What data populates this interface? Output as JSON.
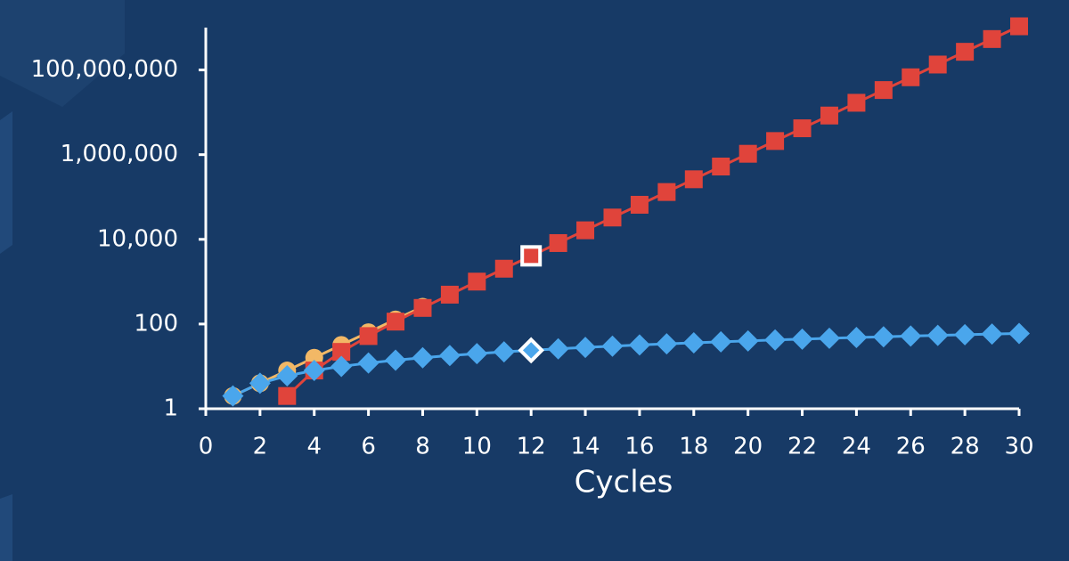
{
  "chart_data": {
    "type": "line",
    "x_label": "Cycles",
    "x": [
      1,
      2,
      3,
      4,
      5,
      6,
      7,
      8,
      9,
      10,
      11,
      12,
      13,
      14,
      15,
      16,
      17,
      18,
      19,
      20,
      21,
      22,
      23,
      24,
      25,
      26,
      27,
      28,
      29,
      30
    ],
    "series": [
      {
        "color": "#f2b866",
        "marker": "circle",
        "values": [
          2,
          4,
          8,
          16,
          32,
          64,
          128,
          256,
          null,
          null,
          null,
          null,
          null,
          null,
          null,
          null,
          null,
          null,
          null,
          null,
          null,
          null,
          null,
          null,
          null,
          null,
          null,
          null,
          null,
          null
        ]
      },
      {
        "color": "#e0443b",
        "marker": "square",
        "values": [
          null,
          null,
          2,
          8,
          22,
          52,
          114,
          240,
          494,
          1004,
          2026,
          4072,
          8166,
          16356,
          32738,
          65504,
          131038,
          262108,
          524250,
          1048536,
          2097110,
          4194260,
          8388562,
          16777168,
          33554382,
          67108812,
          134217674,
          268435400,
          536870854,
          1073741764
        ]
      },
      {
        "color": "#4aa6ec",
        "marker": "diamond",
        "values": [
          2,
          4,
          6,
          8,
          10,
          12,
          14,
          16,
          18,
          20,
          22,
          24,
          26,
          28,
          30,
          32,
          34,
          36,
          38,
          40,
          42,
          44,
          46,
          48,
          50,
          52,
          54,
          56,
          58,
          60
        ]
      }
    ],
    "highlight_index": 11,
    "log_y": true,
    "xlim": [
      0,
      30
    ],
    "xticks": [
      0,
      2,
      4,
      6,
      8,
      10,
      12,
      14,
      16,
      18,
      20,
      22,
      24,
      26,
      28,
      30
    ],
    "ylim": [
      1,
      1000000000
    ],
    "yticks": [
      1,
      100,
      {
        "value": 10000,
        "label": "10,000"
      },
      {
        "value": 1000000,
        "label": "1,000,000"
      },
      {
        "value": 100000000,
        "label": "100,000,000"
      }
    ]
  }
}
